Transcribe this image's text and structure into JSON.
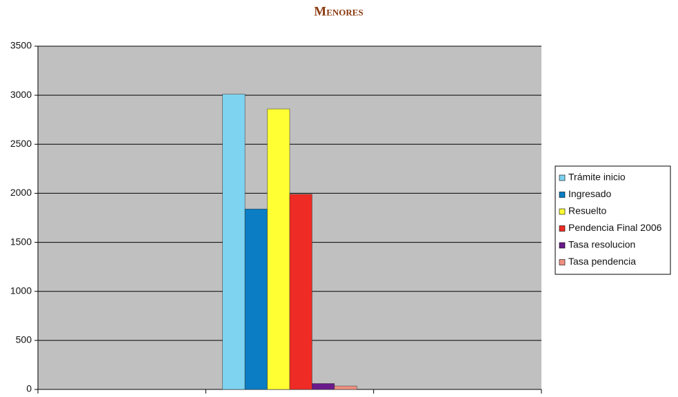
{
  "chart_data": {
    "type": "bar",
    "title": "Menores",
    "categories": [
      null,
      null,
      null
    ],
    "series": [
      {
        "name": "Trámite inicio",
        "color": "#7dd3f0",
        "values": [
          null,
          3010,
          null
        ]
      },
      {
        "name": "Ingresado",
        "color": "#0a7dc4",
        "values": [
          null,
          1840,
          null
        ]
      },
      {
        "name": "Resuelto",
        "color": "#ffff33",
        "values": [
          null,
          2860,
          null
        ]
      },
      {
        "name": "Pendencia Final 2006",
        "color": "#ee2b24",
        "values": [
          null,
          1990,
          null
        ]
      },
      {
        "name": "Tasa resolucion",
        "color": "#6a1a8a",
        "values": [
          null,
          60,
          null
        ]
      },
      {
        "name": "Tasa pendencia",
        "color": "#f08f80",
        "values": [
          null,
          35,
          null
        ]
      }
    ],
    "ylim": [
      0,
      3500
    ],
    "yticks": [
      0,
      500,
      1000,
      1500,
      2000,
      2500,
      3000,
      3500
    ],
    "grid": true,
    "legend": "right"
  }
}
